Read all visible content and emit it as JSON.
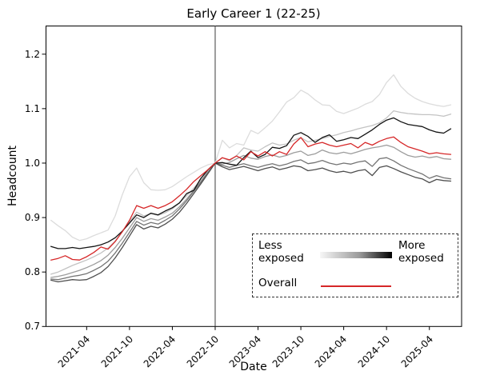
{
  "title": "Early Career 1 (22-25)",
  "xlabel": "Date",
  "ylabel": "Headcount",
  "legend": {
    "less_label": "Less exposed",
    "more_label": "More exposed",
    "overall_label": "Overall",
    "gradient_left_color": "#f7f7f7",
    "gradient_right_color": "#000000",
    "overall_line_color": "#d62728"
  },
  "colors": {
    "overall_red": "#d62728",
    "vline": "#3a3a3a",
    "spine": "#000000",
    "exposure_greys": [
      "#dcdcdc",
      "#c3c3c3",
      "#9c9c9c",
      "#747474",
      "#4e4e4e",
      "#131313"
    ]
  },
  "chart_data": {
    "type": "line",
    "title": "Early Career 1 (22-25)",
    "xlabel": "Date",
    "ylabel": "Headcount",
    "ylim": [
      0.7,
      1.2525
    ],
    "grid": false,
    "legend_position": "lower right inside plot, dashed box",
    "vline_month": "2022-10",
    "y_ticks": [
      0.7,
      0.8,
      0.9,
      1.0,
      1.1,
      1.2
    ],
    "x_tick_labels": [
      "2021-04",
      "2021-10",
      "2022-04",
      "2022-10",
      "2023-04",
      "2023-10",
      "2024-04",
      "2024-10",
      "2025-04"
    ],
    "x": [
      "2020-11",
      "2020-12",
      "2021-01",
      "2021-02",
      "2021-03",
      "2021-04",
      "2021-05",
      "2021-06",
      "2021-07",
      "2021-08",
      "2021-09",
      "2021-10",
      "2021-11",
      "2021-12",
      "2022-01",
      "2022-02",
      "2022-03",
      "2022-04",
      "2022-05",
      "2022-06",
      "2022-07",
      "2022-08",
      "2022-09",
      "2022-10",
      "2022-11",
      "2022-12",
      "2023-01",
      "2023-02",
      "2023-03",
      "2023-04",
      "2023-05",
      "2023-06",
      "2023-07",
      "2023-08",
      "2023-09",
      "2023-10",
      "2023-11",
      "2023-12",
      "2024-01",
      "2024-02",
      "2024-03",
      "2024-04",
      "2024-05",
      "2024-06",
      "2024-07",
      "2024-08",
      "2024-09",
      "2024-10",
      "2024-11",
      "2024-12",
      "2025-01",
      "2025-02",
      "2025-03",
      "2025-04",
      "2025-05",
      "2025-06",
      "2025-07"
    ],
    "series": [
      {
        "name": "exposure-bin-1-least-exposed",
        "color": "#dcdcdc",
        "values": [
          0.895,
          0.885,
          0.876,
          0.864,
          0.858,
          0.861,
          0.867,
          0.872,
          0.877,
          0.903,
          0.942,
          0.975,
          0.991,
          0.964,
          0.951,
          0.95,
          0.951,
          0.957,
          0.966,
          0.975,
          0.983,
          0.991,
          0.997,
          1.0,
          1.042,
          1.028,
          1.036,
          1.033,
          1.06,
          1.054,
          1.065,
          1.077,
          1.094,
          1.112,
          1.12,
          1.134,
          1.127,
          1.116,
          1.107,
          1.106,
          1.095,
          1.091,
          1.096,
          1.101,
          1.108,
          1.113,
          1.126,
          1.148,
          1.162,
          1.141,
          1.128,
          1.119,
          1.113,
          1.109,
          1.106,
          1.104,
          1.107
        ]
      },
      {
        "name": "exposure-bin-2",
        "color": "#c3c3c3",
        "values": [
          0.796,
          0.8,
          0.806,
          0.812,
          0.817,
          0.822,
          0.828,
          0.835,
          0.844,
          0.857,
          0.874,
          0.892,
          0.91,
          0.903,
          0.907,
          0.904,
          0.909,
          0.916,
          0.927,
          0.94,
          0.954,
          0.969,
          0.986,
          1.0,
          1.01,
          1.004,
          1.014,
          1.028,
          1.024,
          1.022,
          1.03,
          1.037,
          1.033,
          1.035,
          1.042,
          1.047,
          1.039,
          1.042,
          1.045,
          1.049,
          1.052,
          1.056,
          1.059,
          1.063,
          1.066,
          1.069,
          1.074,
          1.083,
          1.096,
          1.093,
          1.091,
          1.09,
          1.089,
          1.089,
          1.088,
          1.086,
          1.09
        ]
      },
      {
        "name": "exposure-bin-3",
        "color": "#9c9c9c",
        "values": [
          0.79,
          0.792,
          0.795,
          0.799,
          0.803,
          0.808,
          0.814,
          0.821,
          0.831,
          0.845,
          0.862,
          0.881,
          0.9,
          0.893,
          0.898,
          0.895,
          0.901,
          0.908,
          0.92,
          0.934,
          0.95,
          0.966,
          0.984,
          1.0,
          0.998,
          1.001,
          1.008,
          1.014,
          1.009,
          1.007,
          1.012,
          1.015,
          1.011,
          1.014,
          1.019,
          1.022,
          1.014,
          1.017,
          1.024,
          1.019,
          1.017,
          1.02,
          1.017,
          1.021,
          1.025,
          1.028,
          1.03,
          1.033,
          1.029,
          1.021,
          1.014,
          1.011,
          1.013,
          1.01,
          1.012,
          1.008,
          1.007
        ]
      },
      {
        "name": "exposure-bin-4",
        "color": "#747474",
        "values": [
          0.787,
          0.786,
          0.789,
          0.792,
          0.794,
          0.797,
          0.803,
          0.81,
          0.82,
          0.835,
          0.853,
          0.873,
          0.893,
          0.886,
          0.891,
          0.888,
          0.895,
          0.903,
          0.916,
          0.931,
          0.948,
          0.965,
          0.983,
          1.0,
          0.996,
          0.992,
          0.996,
          0.999,
          0.995,
          0.992,
          0.996,
          0.999,
          0.995,
          0.998,
          1.003,
          1.006,
          0.999,
          1.001,
          1.005,
          1.0,
          0.997,
          1.0,
          0.998,
          1.002,
          1.004,
          0.994,
          1.008,
          1.01,
          1.004,
          0.996,
          0.99,
          0.985,
          0.98,
          0.972,
          0.977,
          0.973,
          0.971
        ]
      },
      {
        "name": "exposure-bin-5",
        "color": "#4e4e4e",
        "values": [
          0.785,
          0.782,
          0.784,
          0.786,
          0.785,
          0.786,
          0.792,
          0.799,
          0.81,
          0.826,
          0.845,
          0.866,
          0.887,
          0.879,
          0.884,
          0.881,
          0.888,
          0.897,
          0.91,
          0.926,
          0.944,
          0.962,
          0.981,
          1.0,
          0.993,
          0.988,
          0.991,
          0.994,
          0.99,
          0.986,
          0.99,
          0.993,
          0.988,
          0.991,
          0.995,
          0.993,
          0.986,
          0.988,
          0.991,
          0.986,
          0.983,
          0.985,
          0.982,
          0.986,
          0.988,
          0.977,
          0.992,
          0.995,
          0.99,
          0.984,
          0.979,
          0.974,
          0.971,
          0.964,
          0.97,
          0.968,
          0.967
        ]
      },
      {
        "name": "exposure-bin-6-most-exposed",
        "color": "#131313",
        "values": [
          0.847,
          0.843,
          0.843,
          0.845,
          0.843,
          0.845,
          0.847,
          0.85,
          0.855,
          0.863,
          0.875,
          0.89,
          0.905,
          0.9,
          0.908,
          0.905,
          0.912,
          0.918,
          0.927,
          0.944,
          0.95,
          0.972,
          0.988,
          1.0,
          1.001,
          0.998,
          0.996,
          1.01,
          1.022,
          1.01,
          1.016,
          1.029,
          1.027,
          1.032,
          1.051,
          1.056,
          1.049,
          1.038,
          1.047,
          1.052,
          1.04,
          1.043,
          1.047,
          1.045,
          1.053,
          1.061,
          1.071,
          1.079,
          1.083,
          1.076,
          1.071,
          1.069,
          1.067,
          1.061,
          1.057,
          1.055,
          1.063
        ]
      },
      {
        "name": "Overall",
        "color": "#d62728",
        "values": [
          0.822,
          0.825,
          0.83,
          0.823,
          0.822,
          0.828,
          0.836,
          0.846,
          0.842,
          0.856,
          0.874,
          0.895,
          0.922,
          0.917,
          0.922,
          0.917,
          0.922,
          0.929,
          0.94,
          0.952,
          0.966,
          0.977,
          0.988,
          1.0,
          1.01,
          1.006,
          1.013,
          1.006,
          1.021,
          1.013,
          1.021,
          1.013,
          1.021,
          1.016,
          1.035,
          1.047,
          1.03,
          1.035,
          1.038,
          1.033,
          1.03,
          1.033,
          1.036,
          1.028,
          1.038,
          1.033,
          1.04,
          1.045,
          1.048,
          1.038,
          1.03,
          1.026,
          1.022,
          1.017,
          1.019,
          1.017,
          1.016
        ]
      }
    ]
  }
}
